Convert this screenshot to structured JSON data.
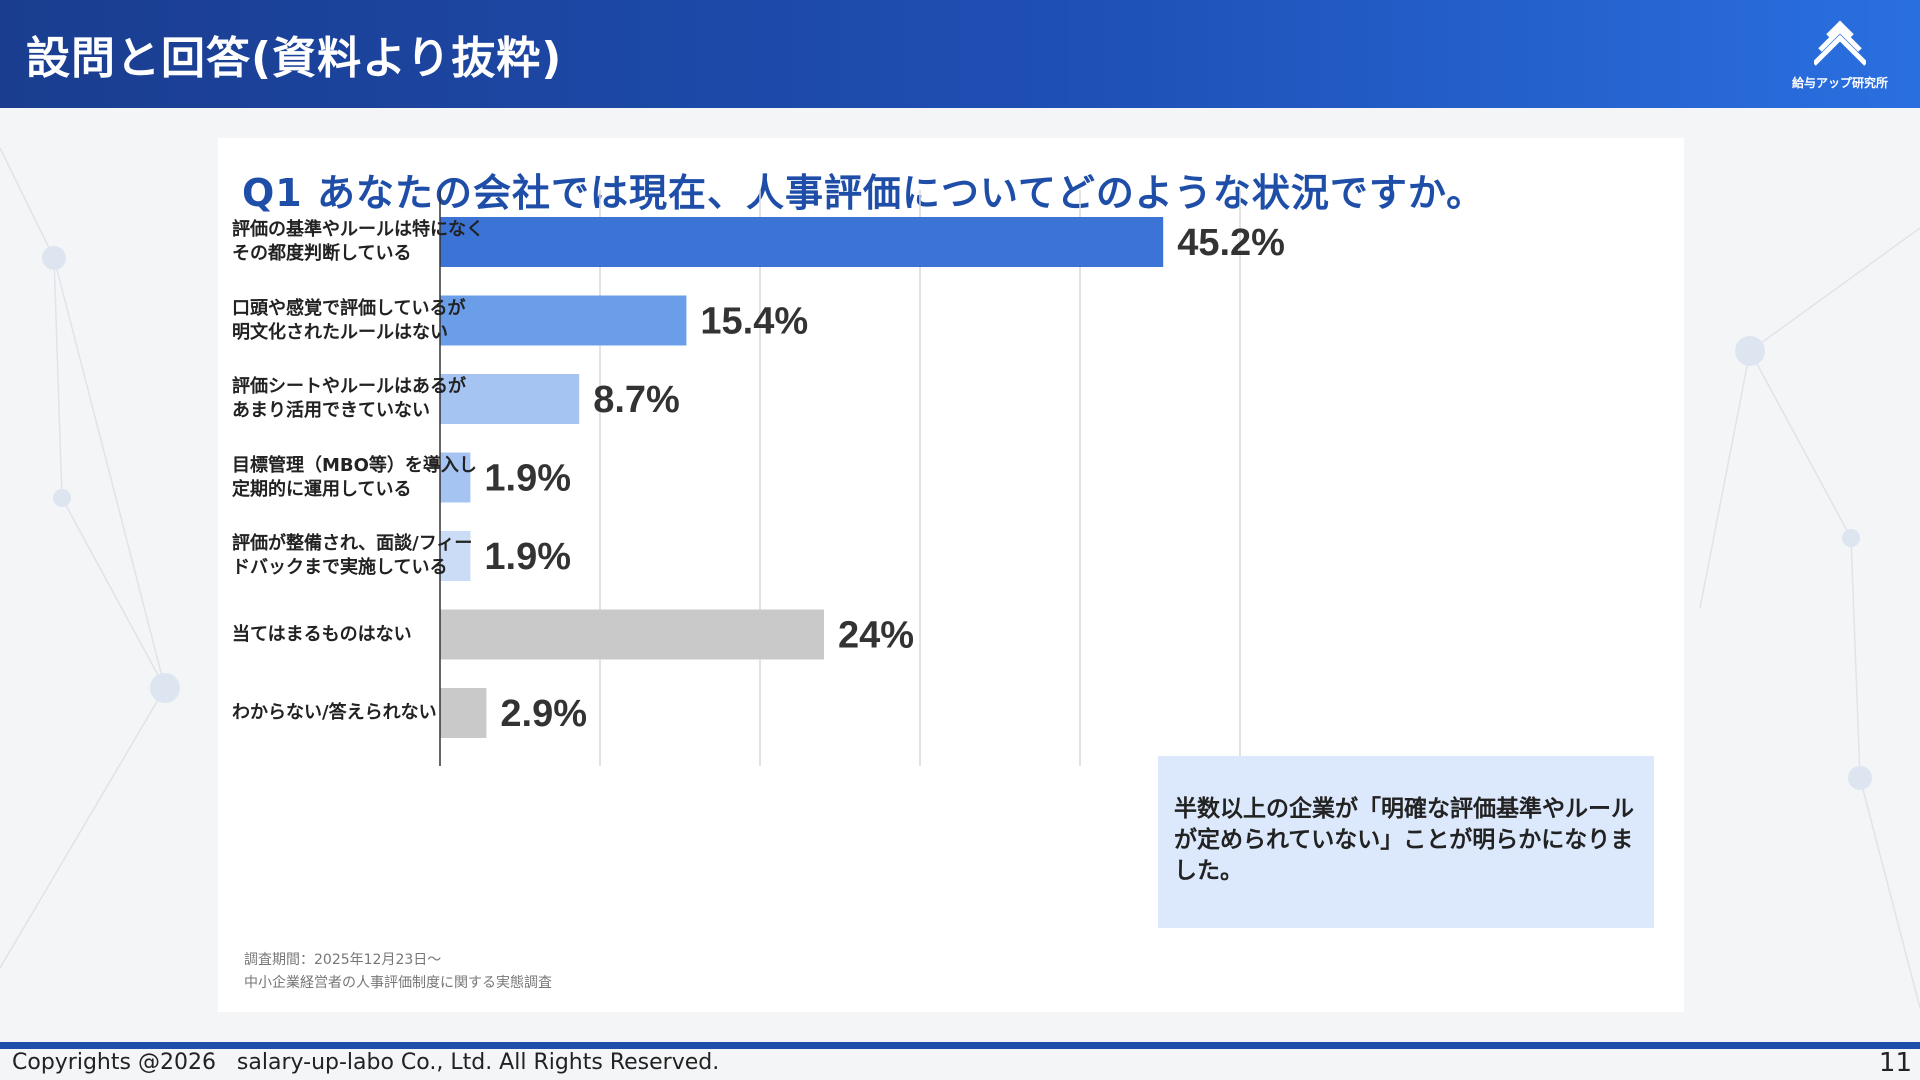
{
  "header": {
    "title": "設問と回答(資料より抜粋)",
    "logo_text": "給与アップ研究所"
  },
  "question": "Q1 あなたの会社では現在、人事評価についてどのような状況ですか。",
  "chart_data": {
    "type": "bar",
    "orientation": "horizontal",
    "title": "Q1 あなたの会社では現在、人事評価についてどのような状況ですか。",
    "categories": [
      "評価の基準やルールは特になく\nその都度判断している",
      "口頭や感覚で評価しているが\n明文化されたルールはない",
      "評価シートやルールはあるが\nあまり活用できていない",
      "目標管理（MBO等）を導入し\n定期的に運用している",
      "評価が整備され、面談/フィー\nドバックまで実施している",
      "当てはまるものはない",
      "わからない/答えられない"
    ],
    "values": [
      45.2,
      15.4,
      8.7,
      1.9,
      1.9,
      24,
      2.9
    ],
    "value_labels": [
      "45.2%",
      "15.4%",
      "8.7%",
      "1.9%",
      "1.9%",
      "24%",
      "2.9%"
    ],
    "colors": [
      "#3c74d6",
      "#6a9ee8",
      "#a6c4f2",
      "#a6c4f2",
      "#cbdcf6",
      "#c9c9c9",
      "#c9c9c9"
    ],
    "xlim": [
      0,
      50
    ],
    "grid": true
  },
  "callout": "半数以上の企業が「明確な評価基準やルールが定められていない」ことが明らかになりました。",
  "note": {
    "line1": "調査期間：2025年12月23日～",
    "line2": "中小企業経営者の人事評価制度に関する実態調査"
  },
  "footer": {
    "copyright": "Copyrights @2026   salary-up-labo Co., Ltd. All Rights Reserved.",
    "page": "11"
  },
  "colors": {
    "header_start": "#1a3d8f",
    "header_end": "#2a6fe0",
    "accent": "#1f4ea8",
    "callout_bg": "#dce9fc"
  }
}
